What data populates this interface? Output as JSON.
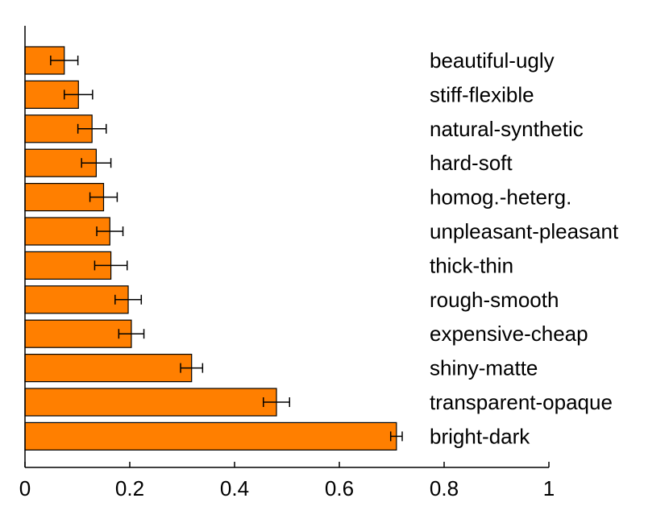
{
  "chart_data": {
    "type": "bar",
    "orientation": "horizontal",
    "categories": [
      "beautiful-ugly",
      "stiff-flexible",
      "natural-synthetic",
      "hard-soft",
      "homog.-heterg.",
      "unpleasant-pleasant",
      "thick-thin",
      "rough-smooth",
      "expensive-cheap",
      "shiny-matte",
      "transparent-opaque",
      "bright-dark"
    ],
    "values": [
      0.075,
      0.102,
      0.128,
      0.136,
      0.15,
      0.162,
      0.164,
      0.197,
      0.203,
      0.318,
      0.48,
      0.709
    ],
    "errors": [
      0.026,
      0.027,
      0.027,
      0.028,
      0.026,
      0.025,
      0.031,
      0.025,
      0.024,
      0.021,
      0.025,
      0.011
    ],
    "xlim": [
      0,
      1
    ],
    "xticks": [
      "0",
      "0.2",
      "0.4",
      "0.6",
      "0.8",
      "1"
    ],
    "xtick_values": [
      0,
      0.2,
      0.4,
      0.6,
      0.8,
      1
    ],
    "bar_color": "#FF7F00",
    "title": "",
    "xlabel": "",
    "ylabel": ""
  }
}
